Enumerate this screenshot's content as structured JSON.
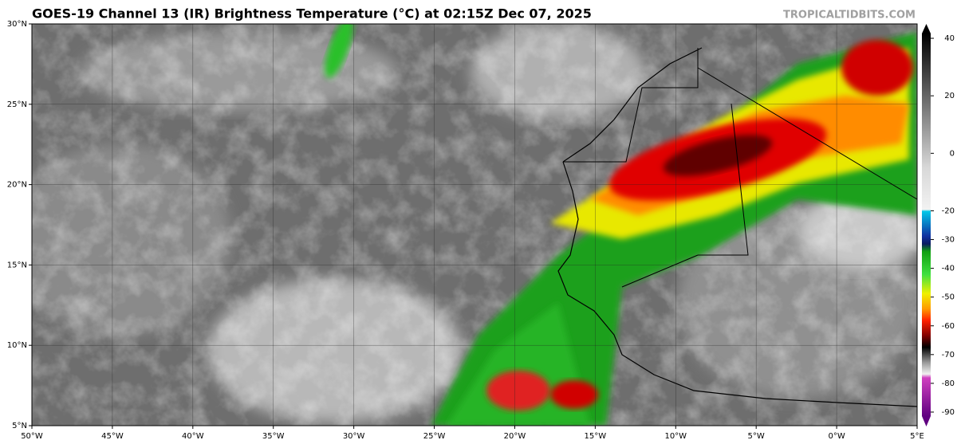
{
  "header": {
    "title": "GOES-19 Channel 13 (IR) Brightness Temperature (°C) at 02:15Z Dec 07, 2025",
    "watermark": "TROPICALTIDBITS.COM"
  },
  "map": {
    "xlim": [
      -50,
      5
    ],
    "ylim": [
      5,
      30
    ],
    "xticks": [
      {
        "value": -50,
        "label": "50°W"
      },
      {
        "value": -45,
        "label": "45°W"
      },
      {
        "value": -40,
        "label": "40°W"
      },
      {
        "value": -35,
        "label": "35°W"
      },
      {
        "value": -30,
        "label": "30°W"
      },
      {
        "value": -25,
        "label": "25°W"
      },
      {
        "value": -20,
        "label": "20°W"
      },
      {
        "value": -15,
        "label": "15°W"
      },
      {
        "value": -10,
        "label": "10°W"
      },
      {
        "value": -5,
        "label": "5°W"
      },
      {
        "value": 0,
        "label": "0°W"
      },
      {
        "value": 5,
        "label": "5°E"
      }
    ],
    "yticks": [
      {
        "value": 5,
        "label": "5°N"
      },
      {
        "value": 10,
        "label": "10°N"
      },
      {
        "value": 15,
        "label": "15°N"
      },
      {
        "value": 20,
        "label": "20°N"
      },
      {
        "value": 25,
        "label": "25°N"
      },
      {
        "value": 30,
        "label": "30°N"
      }
    ],
    "grid": true
  },
  "colorbar": {
    "lim": [
      -95,
      45
    ],
    "ticks": [
      40,
      20,
      0,
      -20,
      -30,
      -40,
      -50,
      -60,
      -70,
      -80,
      -90
    ]
  }
}
